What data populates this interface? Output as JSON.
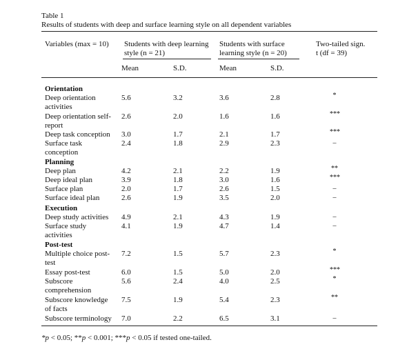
{
  "caption": {
    "label": "Table 1",
    "title": "Results of students with deep and surface learning style on all dependent variables"
  },
  "header": {
    "variables": "Variables (max = 10)",
    "deep_line1": "Students with deep learning",
    "deep_line2": "style (n = 21)",
    "surface_line1": "Students with surface",
    "surface_line2": "learning style (n = 20)",
    "sig_line1": "Two-tailed sign.",
    "sig_line2": "t (df = 39)",
    "mean_deep": "Mean",
    "sd_deep": "S.D.",
    "mean_surface": "Mean",
    "sd_surface": "S.D."
  },
  "rows": [
    {
      "section": "Orientation"
    },
    {
      "label": [
        "Deep orientation",
        "activities"
      ],
      "m1": "5.6",
      "s1": "3.2",
      "m2": "3.6",
      "s2": "2.8",
      "sig": "*"
    },
    {
      "label": [
        "Deep orientation self-",
        "report"
      ],
      "m1": "2.6",
      "s1": "2.0",
      "m2": "1.6",
      "s2": "1.6",
      "sig": "***"
    },
    {
      "label": [
        "Deep task conception"
      ],
      "m1": "3.0",
      "s1": "1.7",
      "m2": "2.1",
      "s2": "1.7",
      "sig": "***"
    },
    {
      "label": [
        "Surface task",
        "conception"
      ],
      "m1": "2.4",
      "s1": "1.8",
      "m2": "2.9",
      "s2": "2.3",
      "sig": "–"
    },
    {
      "section": "Planning"
    },
    {
      "label": [
        "Deep plan"
      ],
      "m1": "4.2",
      "s1": "2.1",
      "m2": "2.2",
      "s2": "1.9",
      "sig": "**"
    },
    {
      "label": [
        "Deep ideal plan"
      ],
      "m1": "3.9",
      "s1": "1.8",
      "m2": "3.0",
      "s2": "1.6",
      "sig": "***"
    },
    {
      "label": [
        "Surface plan"
      ],
      "m1": "2.0",
      "s1": "1.7",
      "m2": "2.6",
      "s2": "1.5",
      "sig": "–"
    },
    {
      "label": [
        "Surface ideal plan"
      ],
      "m1": "2.6",
      "s1": "1.9",
      "m2": "3.5",
      "s2": "2.0",
      "sig": "–"
    },
    {
      "section": "Execution"
    },
    {
      "label": [
        "Deep study activities"
      ],
      "m1": "4.9",
      "s1": "2.1",
      "m2": "4.3",
      "s2": "1.9",
      "sig": "–"
    },
    {
      "label": [
        "Surface study",
        "activities"
      ],
      "m1": "4.1",
      "s1": "1.9",
      "m2": "4.7",
      "s2": "1.4",
      "sig": "–"
    },
    {
      "section": "Post-test"
    },
    {
      "label": [
        "Multiple choice post-",
        "test"
      ],
      "m1": "7.2",
      "s1": "1.5",
      "m2": "5.7",
      "s2": "2.3",
      "sig": "*"
    },
    {
      "label": [
        "Essay post-test"
      ],
      "m1": "6.0",
      "s1": "1.5",
      "m2": "5.0",
      "s2": "2.0",
      "sig": "***"
    },
    {
      "label": [
        "Subscore",
        "comprehension"
      ],
      "m1": "5.6",
      "s1": "2.4",
      "m2": "4.0",
      "s2": "2.5",
      "sig": "*"
    },
    {
      "label": [
        "Subscore knowledge",
        "of facts"
      ],
      "m1": "7.5",
      "s1": "1.9",
      "m2": "5.4",
      "s2": "2.3",
      "sig": "**"
    },
    {
      "label": [
        "Subscore terminology"
      ],
      "m1": "7.0",
      "s1": "2.2",
      "m2": "6.5",
      "s2": "3.1",
      "sig": "–"
    }
  ],
  "footnote": "*p < 0.05; **p < 0.001; ***p < 0.05 if tested one-tailed."
}
